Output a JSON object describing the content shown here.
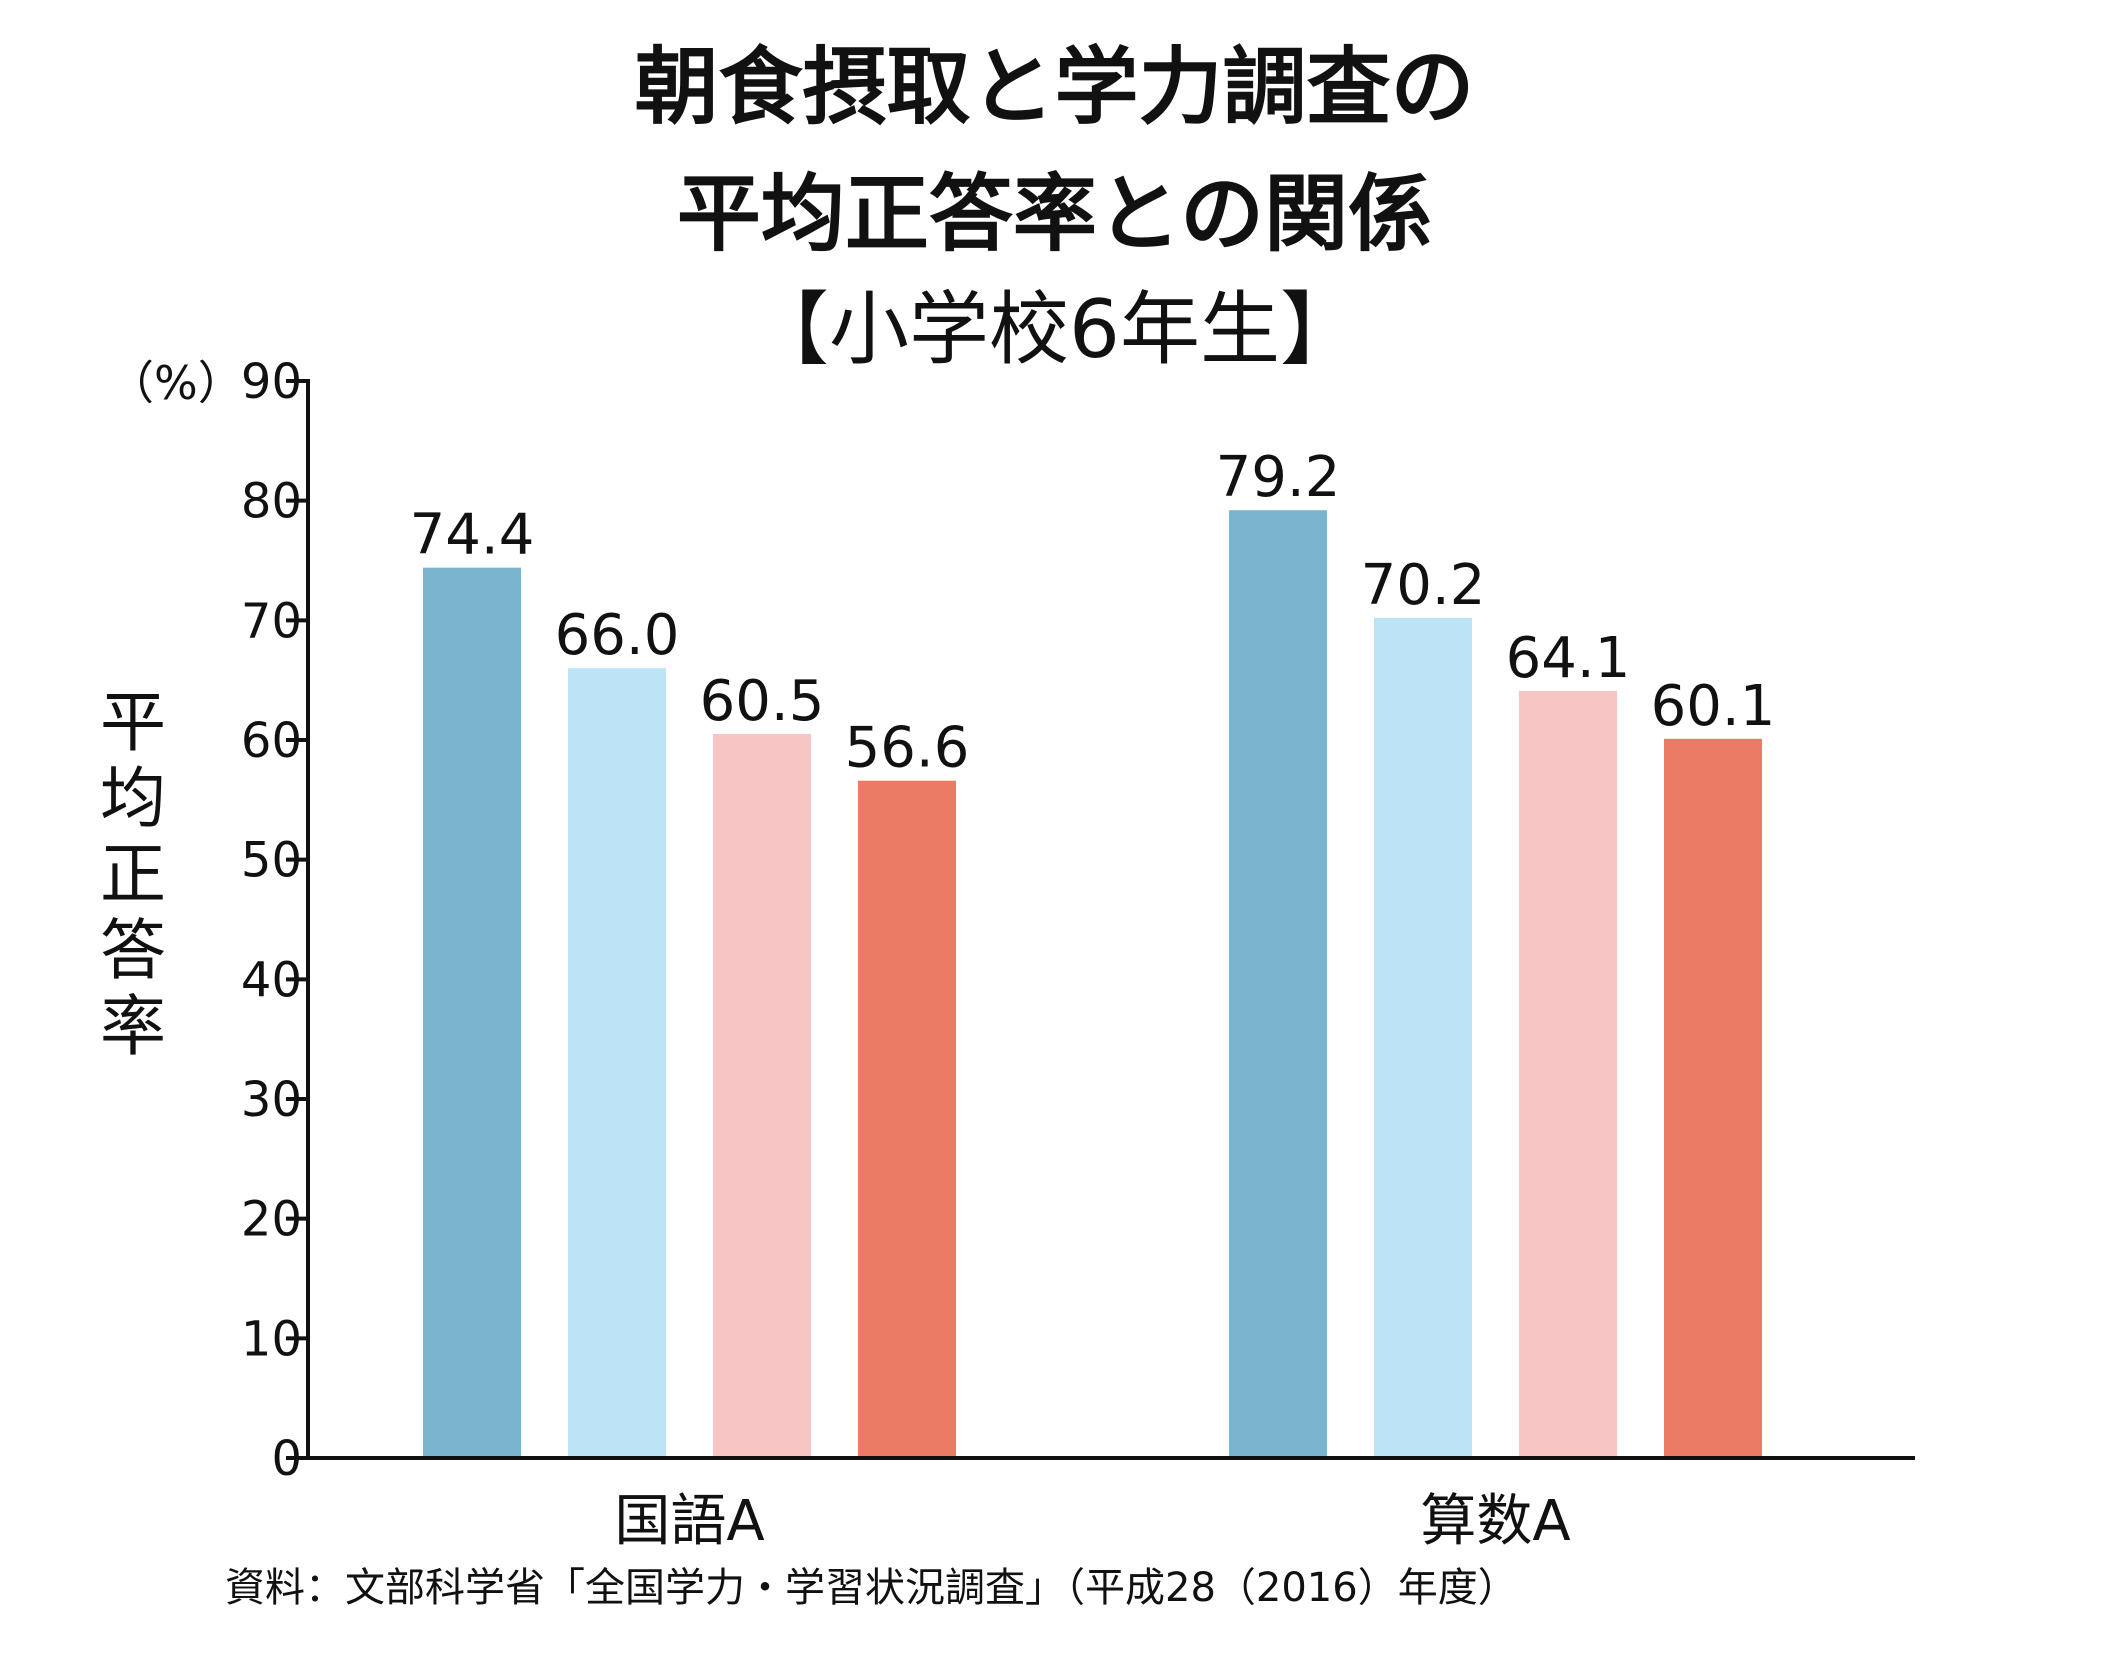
{
  "title_lines": [
    "朝食摂取と学力調査の",
    "平均正答率との関係"
  ],
  "subtitle": "【小学校6年生】",
  "unit_label": "（%）",
  "ylabel_chars": [
    "平",
    "均",
    "正",
    "答",
    "率"
  ],
  "source": "資料：文部科学省「全国学力・学習状況調査」（平成28（2016）年度）",
  "chart_data": {
    "type": "bar",
    "categories": [
      "国語A",
      "算数A"
    ],
    "series": [
      {
        "values": [
          74.4,
          79.2
        ],
        "color": "#7bb4ce"
      },
      {
        "values": [
          66.0,
          70.2
        ],
        "color": "#bde3f7"
      },
      {
        "values": [
          60.5,
          64.1
        ],
        "color": "#f7c5c4"
      },
      {
        "values": [
          56.6,
          60.1
        ],
        "color": "#ec7b65"
      }
    ],
    "value_labels": [
      [
        "74.4",
        "79.2"
      ],
      [
        "66.0",
        "70.2"
      ],
      [
        "60.5",
        "64.1"
      ],
      [
        "56.6",
        "60.1"
      ]
    ],
    "yticks": [
      0,
      10,
      20,
      30,
      40,
      50,
      60,
      70,
      80,
      90
    ],
    "ylim": [
      0,
      90
    ],
    "ylabel": "平均正答率",
    "grid": false,
    "legend": false
  }
}
